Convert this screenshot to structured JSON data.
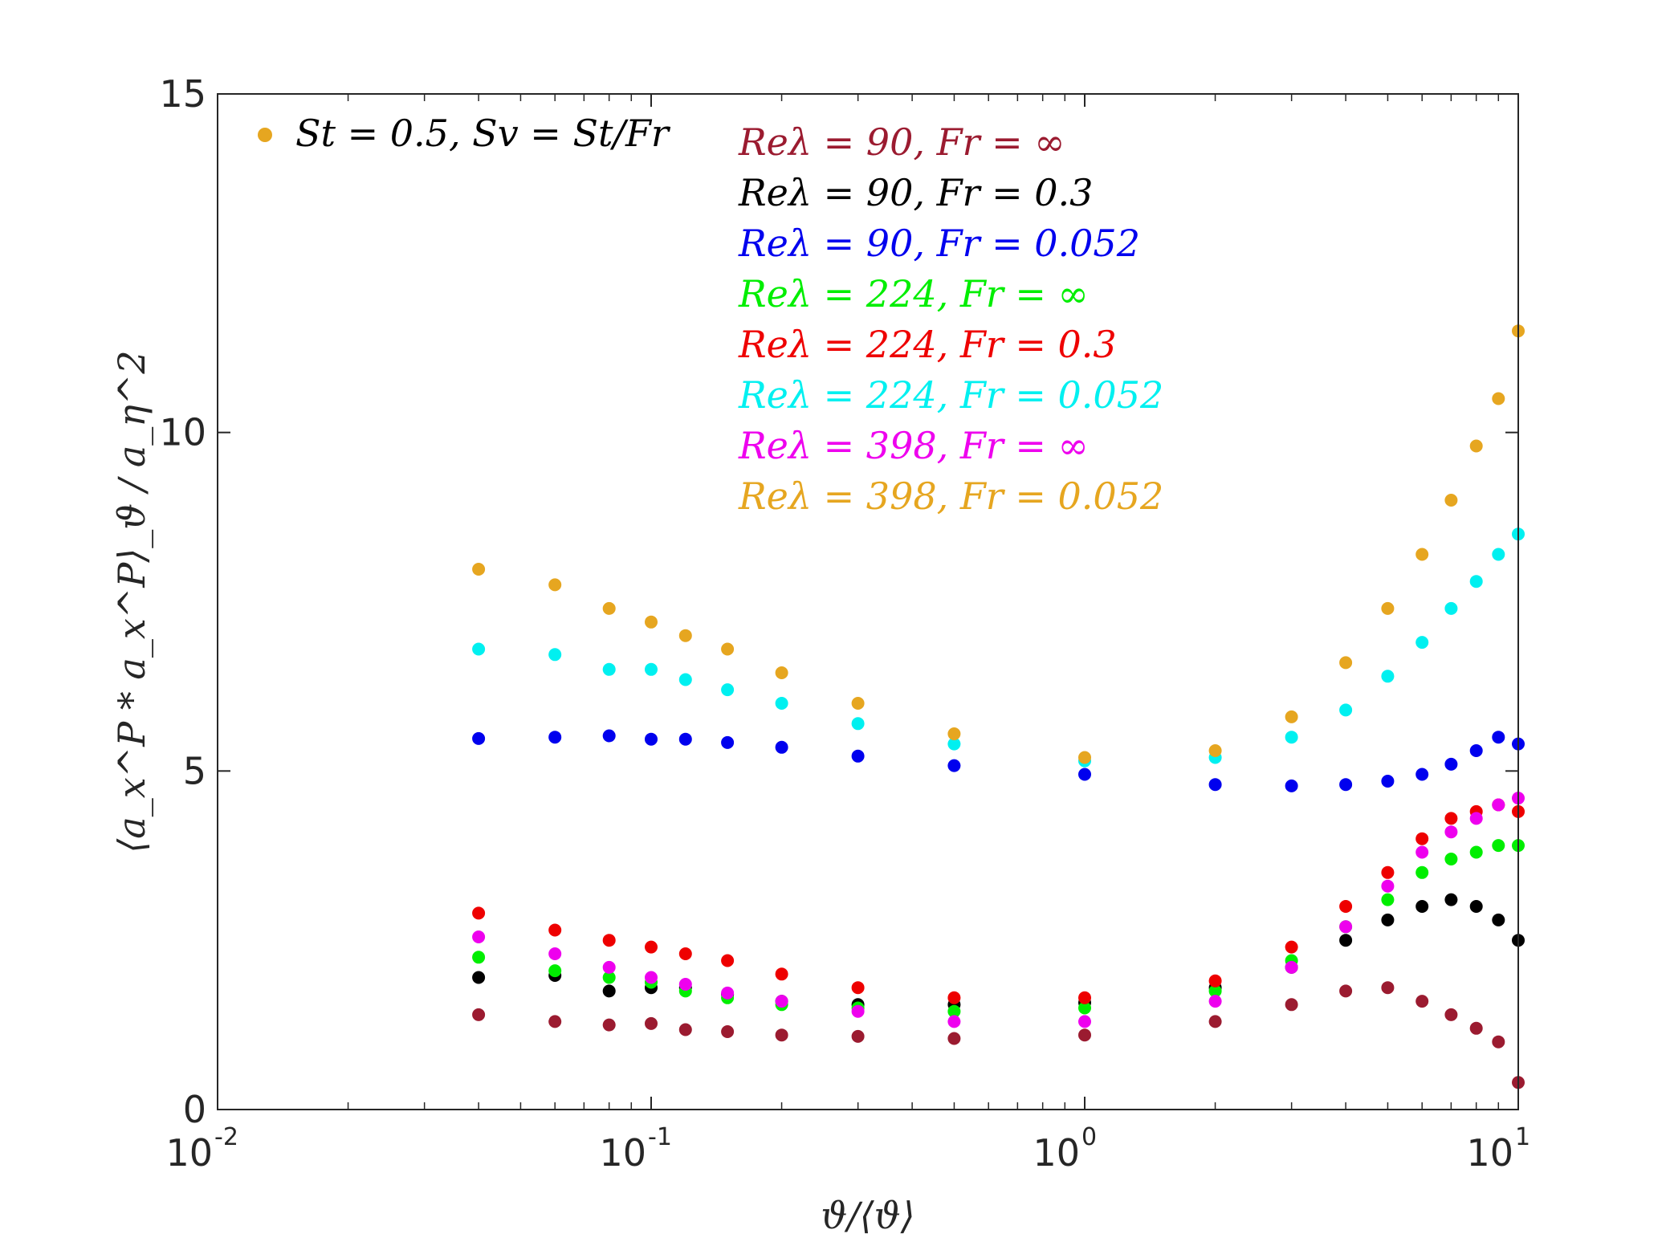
{
  "chart_data": {
    "type": "scatter",
    "xscale": "log",
    "xlim": [
      0.01,
      10
    ],
    "ylim": [
      0,
      15
    ],
    "grid": false,
    "xlabel": "ϑ/⟨ϑ⟩",
    "ylabel": "⟨a_x^P * a_x^P⟩_ϑ / a_η^2",
    "xticks": [
      {
        "value": 0.01,
        "base": "10",
        "exp": "-2"
      },
      {
        "value": 0.1,
        "base": "10",
        "exp": "-1"
      },
      {
        "value": 1,
        "base": "10",
        "exp": "0"
      },
      {
        "value": 10,
        "base": "10",
        "exp": "1"
      }
    ],
    "yticks": [
      {
        "value": 0,
        "label": "0"
      },
      {
        "value": 5,
        "label": "5"
      },
      {
        "value": 10,
        "label": "10"
      },
      {
        "value": 15,
        "label": "15"
      }
    ],
    "marker_note": "St = 0.5, Sv = St/Fr",
    "marker_note_color": "#E6A620",
    "legend_placement": "top-center",
    "series": [
      {
        "name": "Re_λ = 90, Fr = ∞",
        "color": "#9B1B30",
        "x": [
          0.04,
          0.06,
          0.08,
          0.1,
          0.12,
          0.15,
          0.2,
          0.3,
          0.5,
          1.0,
          2.0,
          3.0,
          4.0,
          5.0,
          6.0,
          7.0,
          8.0,
          9.0,
          10.0
        ],
        "y": [
          1.4,
          1.3,
          1.25,
          1.27,
          1.18,
          1.15,
          1.1,
          1.08,
          1.05,
          1.1,
          1.3,
          1.55,
          1.75,
          1.8,
          1.6,
          1.4,
          1.2,
          1.0,
          0.4
        ]
      },
      {
        "name": "Re_λ = 90, Fr = 0.3",
        "color": "#000000",
        "x": [
          0.04,
          0.06,
          0.08,
          0.1,
          0.12,
          0.15,
          0.2,
          0.3,
          0.5,
          1.0,
          2.0,
          3.0,
          4.0,
          5.0,
          6.0,
          7.0,
          8.0,
          9.0,
          10.0
        ],
        "y": [
          1.95,
          1.98,
          1.75,
          1.8,
          1.8,
          1.7,
          1.6,
          1.55,
          1.55,
          1.58,
          1.8,
          2.1,
          2.5,
          2.8,
          3.0,
          3.1,
          3.0,
          2.8,
          2.5
        ]
      },
      {
        "name": "Re_λ = 90, Fr = 0.052",
        "color": "#0000EE",
        "x": [
          0.04,
          0.06,
          0.08,
          0.1,
          0.12,
          0.15,
          0.2,
          0.3,
          0.5,
          1.0,
          2.0,
          3.0,
          4.0,
          5.0,
          6.0,
          7.0,
          8.0,
          9.0,
          10.0
        ],
        "y": [
          5.48,
          5.5,
          5.52,
          5.47,
          5.47,
          5.42,
          5.35,
          5.22,
          5.08,
          4.95,
          4.8,
          4.78,
          4.8,
          4.85,
          4.95,
          5.1,
          5.3,
          5.5,
          5.4
        ]
      },
      {
        "name": "Re_λ = 224, Fr = ∞",
        "color": "#00EE00",
        "x": [
          0.04,
          0.06,
          0.08,
          0.1,
          0.12,
          0.15,
          0.2,
          0.3,
          0.5,
          1.0,
          2.0,
          3.0,
          4.0,
          5.0,
          6.0,
          7.0,
          8.0,
          9.0,
          10.0
        ],
        "y": [
          2.25,
          2.05,
          1.95,
          1.88,
          1.75,
          1.65,
          1.55,
          1.5,
          1.45,
          1.5,
          1.75,
          2.2,
          2.7,
          3.1,
          3.5,
          3.7,
          3.8,
          3.9,
          3.9
        ]
      },
      {
        "name": "Re_λ = 224, Fr = 0.3",
        "color": "#EE0000",
        "x": [
          0.04,
          0.06,
          0.08,
          0.1,
          0.12,
          0.15,
          0.2,
          0.3,
          0.5,
          1.0,
          2.0,
          3.0,
          4.0,
          5.0,
          6.0,
          7.0,
          8.0,
          9.0,
          10.0
        ],
        "y": [
          2.9,
          2.65,
          2.5,
          2.4,
          2.3,
          2.2,
          2.0,
          1.8,
          1.65,
          1.65,
          1.9,
          2.4,
          3.0,
          3.5,
          4.0,
          4.3,
          4.4,
          4.5,
          4.4
        ]
      },
      {
        "name": "Re_λ = 224, Fr = 0.052",
        "color": "#00F0F0",
        "x": [
          0.04,
          0.06,
          0.08,
          0.1,
          0.12,
          0.15,
          0.2,
          0.3,
          0.5,
          1.0,
          2.0,
          3.0,
          4.0,
          5.0,
          6.0,
          7.0,
          8.0,
          9.0,
          10.0
        ],
        "y": [
          6.8,
          6.72,
          6.5,
          6.5,
          6.35,
          6.2,
          6.0,
          5.7,
          5.4,
          5.15,
          5.2,
          5.5,
          5.9,
          6.4,
          6.9,
          7.4,
          7.8,
          8.2,
          8.5
        ]
      },
      {
        "name": "Re_λ = 398, Fr = ∞",
        "color": "#EE00EE",
        "x": [
          0.04,
          0.06,
          0.08,
          0.1,
          0.12,
          0.15,
          0.2,
          0.3,
          0.5,
          1.0,
          2.0,
          3.0,
          4.0,
          5.0,
          6.0,
          7.0,
          8.0,
          9.0,
          10.0
        ],
        "y": [
          2.55,
          2.3,
          2.1,
          1.95,
          1.85,
          1.72,
          1.6,
          1.45,
          1.3,
          1.3,
          1.6,
          2.1,
          2.7,
          3.3,
          3.8,
          4.1,
          4.3,
          4.5,
          4.6
        ]
      },
      {
        "name": "Re_λ = 398, Fr = 0.052",
        "color": "#E6A620",
        "x": [
          0.04,
          0.06,
          0.08,
          0.1,
          0.12,
          0.15,
          0.2,
          0.3,
          0.5,
          1.0,
          2.0,
          3.0,
          4.0,
          5.0,
          6.0,
          7.0,
          8.0,
          9.0,
          10.0
        ],
        "y": [
          7.98,
          7.75,
          7.4,
          7.2,
          7.0,
          6.8,
          6.45,
          6.0,
          5.55,
          5.2,
          5.3,
          5.8,
          6.6,
          7.4,
          8.2,
          9.0,
          9.8,
          10.5,
          11.5
        ]
      }
    ],
    "legend": [
      {
        "label": "Reλ = 90, Fr = ∞",
        "color": "#9B1B30"
      },
      {
        "label": "Reλ = 90, Fr = 0.3",
        "color": "#000000"
      },
      {
        "label": "Reλ = 90, Fr = 0.052",
        "color": "#0000EE"
      },
      {
        "label": "Reλ = 224, Fr = ∞",
        "color": "#00EE00"
      },
      {
        "label": "Reλ = 224, Fr = 0.3",
        "color": "#EE0000"
      },
      {
        "label": "Reλ = 224, Fr = 0.052",
        "color": "#00F0F0"
      },
      {
        "label": "Reλ = 398, Fr = ∞",
        "color": "#EE00EE"
      },
      {
        "label": "Reλ = 398, Fr = 0.052",
        "color": "#E6A620"
      }
    ]
  }
}
